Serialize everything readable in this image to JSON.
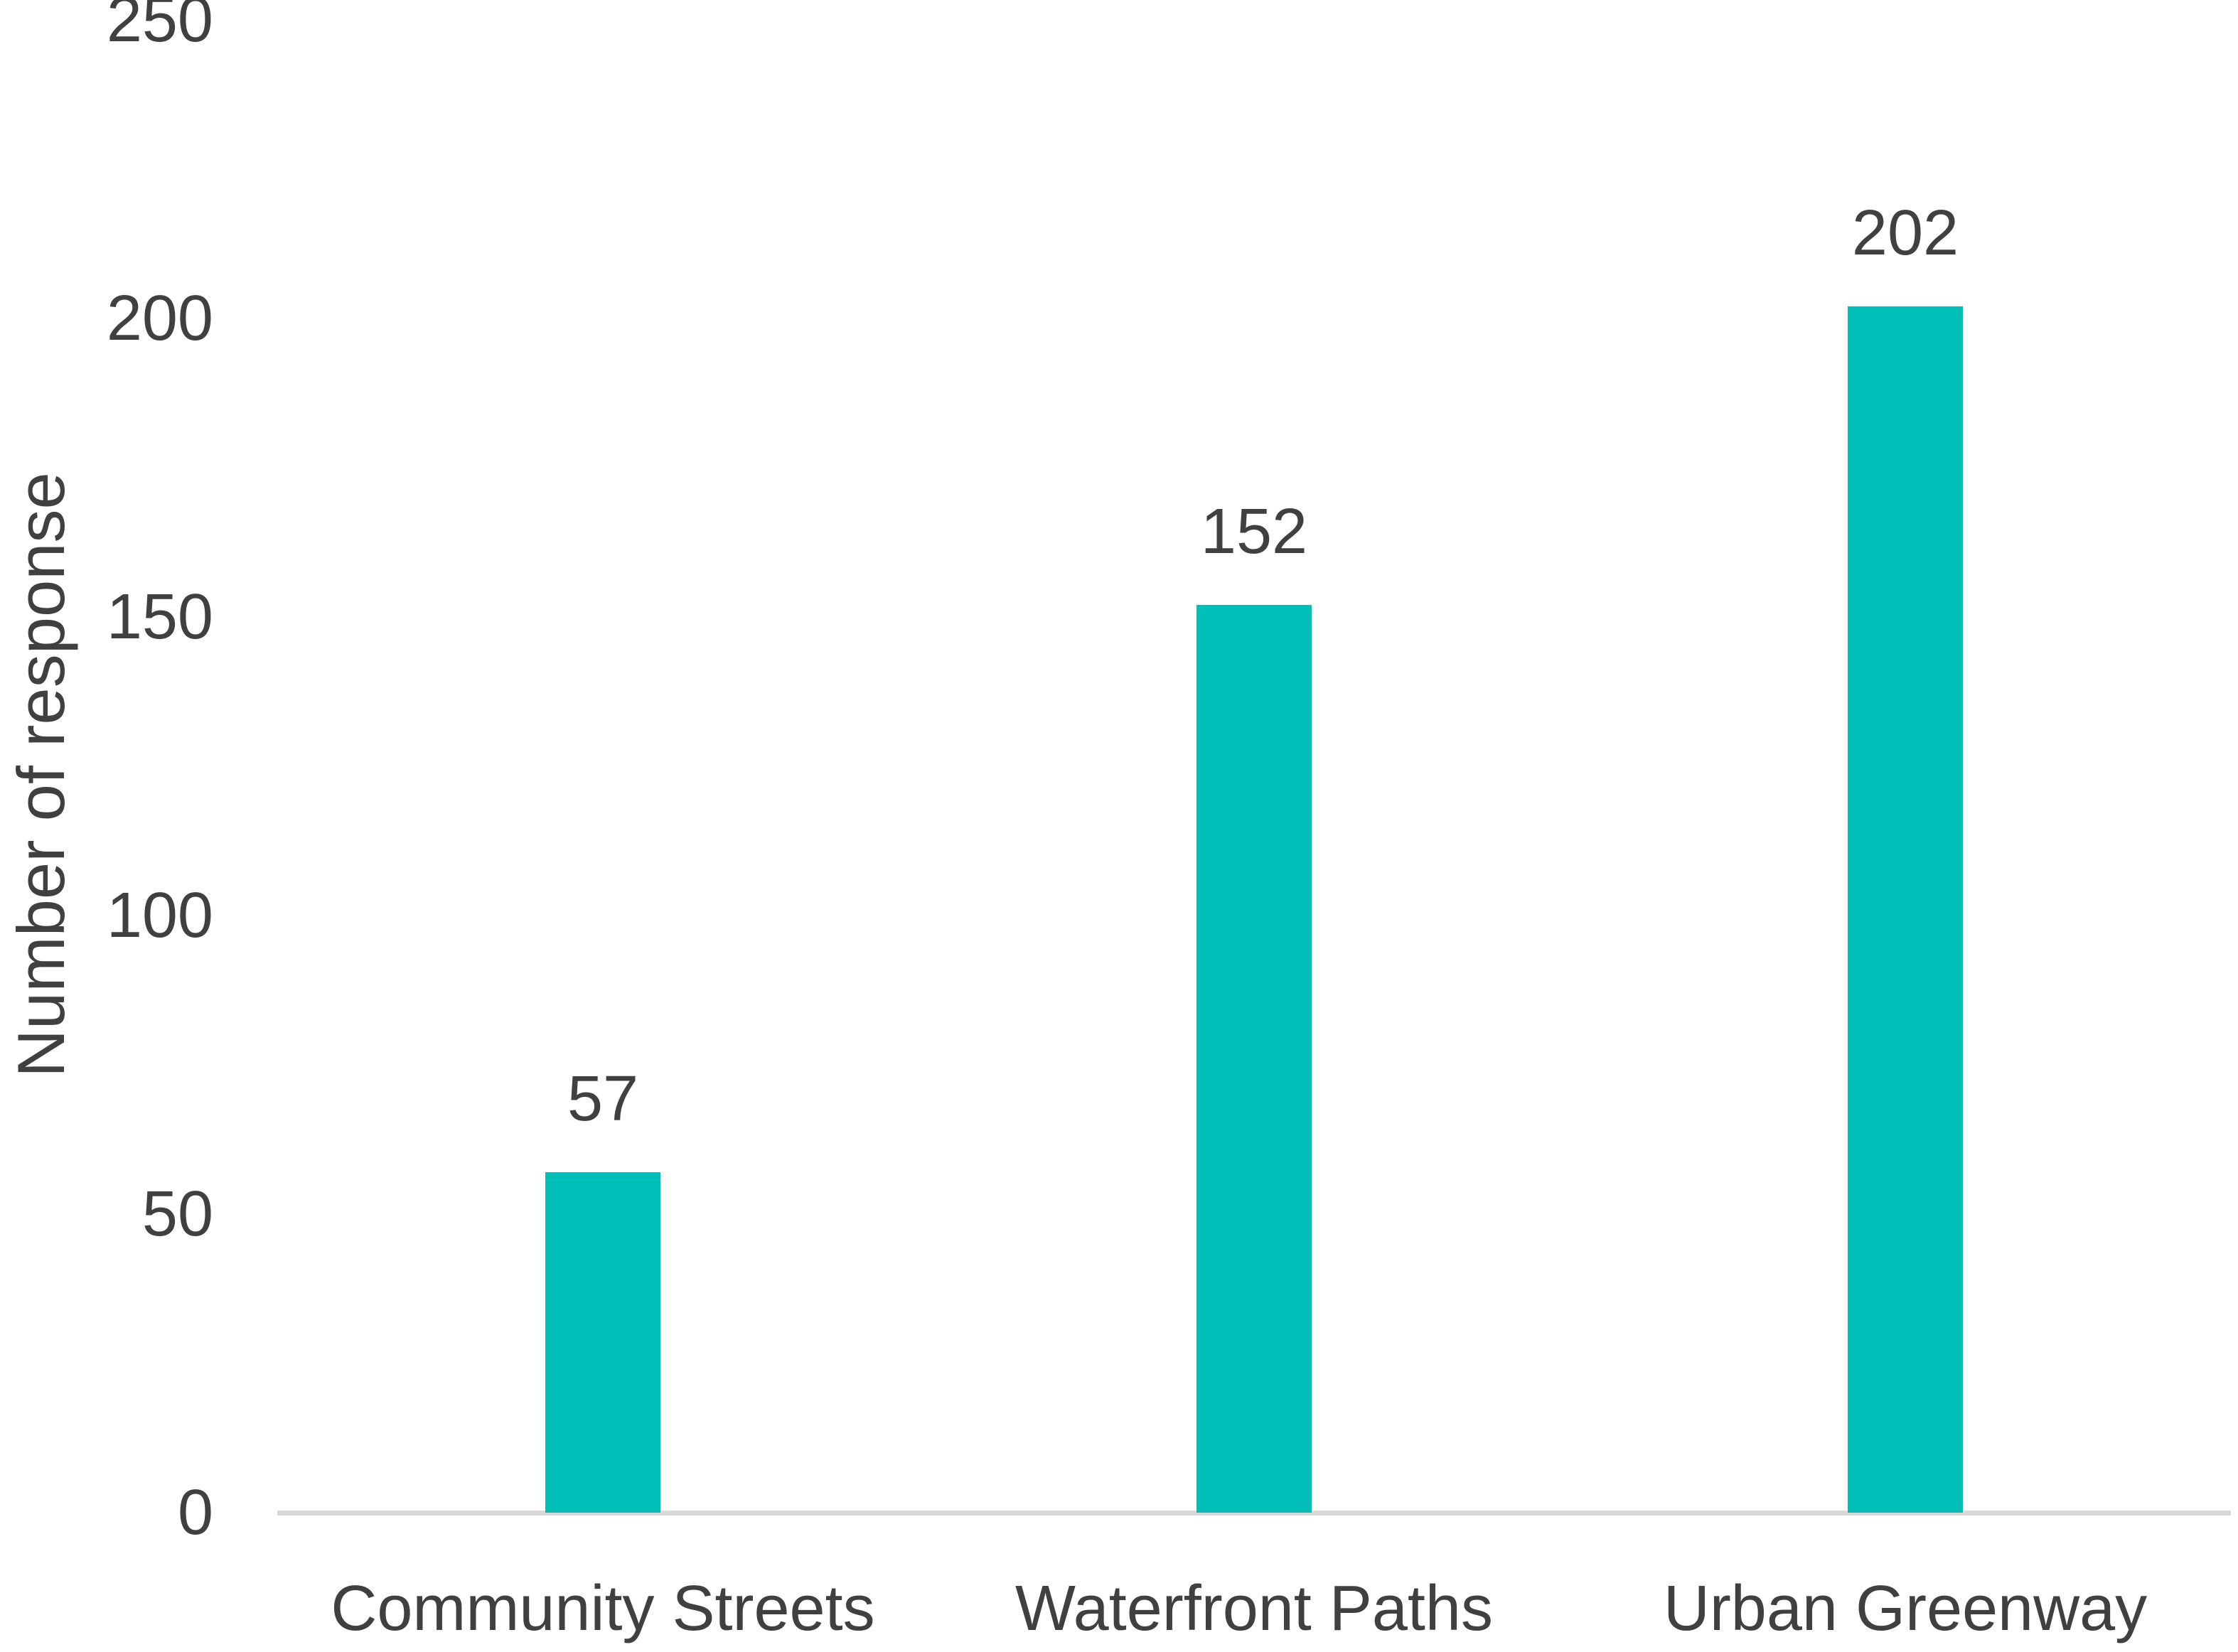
{
  "chart_data": {
    "type": "bar",
    "title": "",
    "xlabel": "",
    "ylabel": "Number of response",
    "categories": [
      "Community Streets",
      "Waterfront Paths",
      "Urban Greenway"
    ],
    "values": [
      57,
      152,
      202
    ],
    "data_labels": [
      "57",
      "152",
      "202"
    ],
    "yticks": [
      0,
      50,
      100,
      150,
      200,
      250
    ],
    "ylim": [
      0,
      250
    ],
    "grid": false,
    "legend": false,
    "bar_color": "#00BFB8",
    "axis_line_color": "#D9D9D9",
    "text_color": "#404040"
  }
}
